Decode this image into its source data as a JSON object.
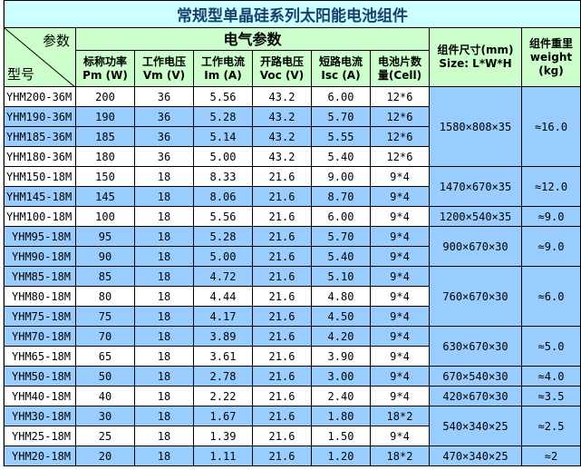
{
  "title": "常规型单晶硅系列太阳能电池组件",
  "header": {
    "param": "参数",
    "model": "型号",
    "electrical": "电气参数",
    "cols": [
      [
        "标称功率",
        "Pm (W)"
      ],
      [
        "工作电压",
        "Vm (V)"
      ],
      [
        "工作电流",
        "Im (A)"
      ],
      [
        "开路电压",
        "Voc (V)"
      ],
      [
        "短路电流",
        "Isc (A)"
      ],
      [
        "电池片数",
        "量(Cell)"
      ]
    ],
    "size": [
      "组件尺寸(mm)",
      "Size: L*W*H"
    ],
    "weight": [
      "组件重里",
      "weight",
      "(kg)"
    ]
  },
  "colors": {
    "title_bg": "#ccffff",
    "header_bg": "#ccffcc",
    "row_blue": "#99ccff",
    "title_text": "#1a3f6f"
  },
  "rows": [
    [
      "YHM200-36M",
      "200",
      "36",
      "5.56",
      "43.2",
      "6.00",
      "12*6",
      "w"
    ],
    [
      "YHM190-36M",
      "190",
      "36",
      "5.28",
      "43.2",
      "5.70",
      "12*6",
      "b"
    ],
    [
      "YHM185-36M",
      "185",
      "36",
      "5.14",
      "43.2",
      "5.55",
      "12*6",
      "b"
    ],
    [
      "YHM180-36M",
      "180",
      "36",
      "5.00",
      "43.2",
      "5.40",
      "12*6",
      "w"
    ],
    [
      "YHM150-18M",
      "150",
      "18",
      "8.33",
      "21.6",
      "9.00",
      "9*4",
      "w"
    ],
    [
      "YHM145-18M",
      "145",
      "18",
      "8.06",
      "21.6",
      "8.70",
      "9*4",
      "b"
    ],
    [
      "YHM100-18M",
      "100",
      "18",
      "5.56",
      "21.6",
      "6.00",
      "9*4",
      "w"
    ],
    [
      "YHM95-18M",
      "95",
      "18",
      "5.28",
      "21.6",
      "5.70",
      "9*4",
      "b"
    ],
    [
      "YHM90-18M",
      "90",
      "18",
      "5.00",
      "21.6",
      "5.40",
      "9*4",
      "b"
    ],
    [
      "YHM85-18M",
      "85",
      "18",
      "4.72",
      "21.6",
      "5.10",
      "9*4",
      "b"
    ],
    [
      "YHM80-18M",
      "80",
      "18",
      "4.44",
      "21.6",
      "4.80",
      "9*4",
      "w"
    ],
    [
      "YHM75-18M",
      "75",
      "18",
      "4.17",
      "21.6",
      "4.50",
      "9*4",
      "b"
    ],
    [
      "YHM70-18M",
      "70",
      "18",
      "3.89",
      "21.6",
      "4.20",
      "9*4",
      "b"
    ],
    [
      "YHM65-18M",
      "65",
      "18",
      "3.61",
      "21.6",
      "3.90",
      "9*4",
      "w"
    ],
    [
      "YHM50-18M",
      "50",
      "18",
      "2.78",
      "21.6",
      "3.00",
      "9*4",
      "b"
    ],
    [
      "YHM40-18M",
      "40",
      "18",
      "2.22",
      "21.6",
      "2.40",
      "9*4",
      "w"
    ],
    [
      "YHM30-18M",
      "30",
      "18",
      "1.67",
      "21.6",
      "1.80",
      "18*2",
      "b"
    ],
    [
      "YHM25-18M",
      "25",
      "18",
      "1.39",
      "21.6",
      "1.50",
      "9*4",
      "w"
    ],
    [
      "YHM20-18M",
      "20",
      "18",
      "1.11",
      "21.6",
      "1.20",
      "18*2",
      "b"
    ]
  ],
  "groups": [
    {
      "start": 0,
      "span": 4,
      "size": "1580×808×35",
      "weight": "≈16.0"
    },
    {
      "start": 4,
      "span": 2,
      "size": "1470×670×35",
      "weight": "≈12.0"
    },
    {
      "start": 6,
      "span": 1,
      "size": "1200×540×35",
      "weight": "≈9.0"
    },
    {
      "start": 7,
      "span": 2,
      "size": "900×670×30",
      "weight": "≈9.0"
    },
    {
      "start": 9,
      "span": 3,
      "size": "760×670×30",
      "weight": "≈6.0"
    },
    {
      "start": 12,
      "span": 2,
      "size": "630×670×30",
      "weight": "≈5.0"
    },
    {
      "start": 14,
      "span": 1,
      "size": "670×540×30",
      "weight": "≈4.0"
    },
    {
      "start": 15,
      "span": 1,
      "size": "420×670×30",
      "weight": "≈3.5"
    },
    {
      "start": 16,
      "span": 2,
      "size": "540×340×25",
      "weight": "≈2.5"
    },
    {
      "start": 18,
      "span": 1,
      "size": "470×340×25",
      "weight": "≈2"
    }
  ]
}
